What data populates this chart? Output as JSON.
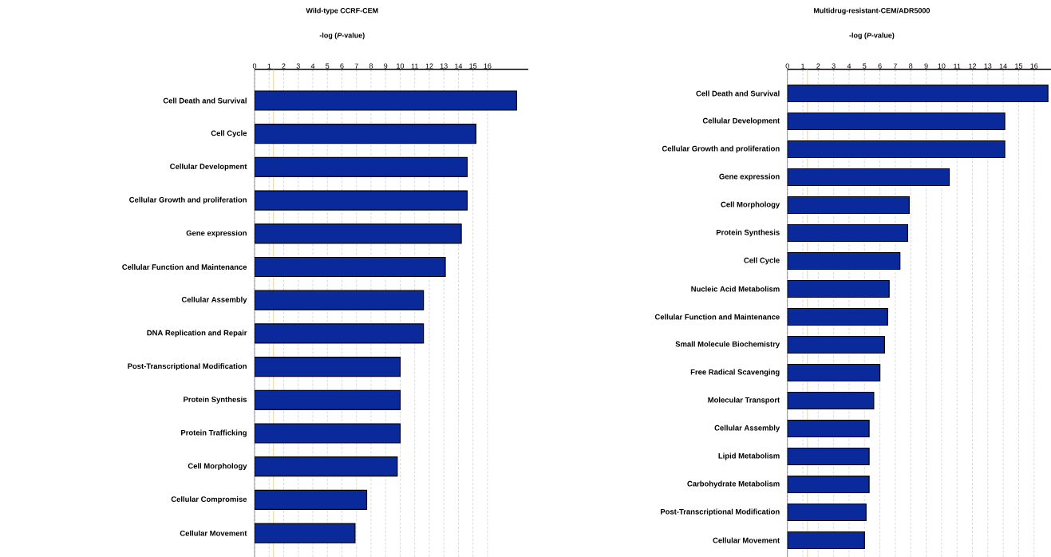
{
  "chart_data": [
    {
      "type": "bar",
      "orientation": "horizontal",
      "title": "Wild-type CCRF-CEM",
      "xlabel": "-log (*P*-value)",
      "categories": [
        "Cell Death and Survival",
        "Cell Cycle",
        "Cellular Development",
        "Cellular Growth and proliferation",
        "Gene expression",
        "Cellular Function and Maintenance",
        "Cellular Assembly",
        "DNA Replication and Repair",
        "Post-Transcriptional Modification",
        "Protein Synthesis",
        "Protein Trafficking",
        "Cell Morphology",
        "Cellular Compromise",
        "Cellular Movement"
      ],
      "values": [
        18.0,
        15.2,
        14.6,
        14.6,
        14.2,
        13.1,
        11.6,
        11.6,
        10.0,
        10.0,
        10.0,
        9.8,
        7.7,
        6.9
      ],
      "color": "#0a2a9c",
      "xlim": [
        0,
        18.8
      ],
      "xticks": [
        0,
        1,
        2,
        3,
        4,
        5,
        6,
        7,
        8,
        9,
        10,
        11,
        12,
        13,
        14,
        15,
        16
      ],
      "grid": "x",
      "ref_lines": [
        {
          "axis": "x",
          "value": 1.3,
          "color": "#f3c77a"
        }
      ]
    },
    {
      "type": "bar",
      "orientation": "horizontal",
      "title": "Multidrug-resistant-CEM/ADR5000",
      "xlabel": "-log (*P*-value)",
      "categories": [
        "Cell Death and Survival",
        "Cellular Development",
        "Cellular Growth and proliferation",
        "Gene expression",
        "Cell Morphology",
        "Protein Synthesis",
        "Cell Cycle",
        "Nucleic Acid Metabolism",
        "Cellular Function and Maintenance",
        "Small Molecule Biochemistry",
        "Free Radical Scavenging",
        "Molecular Transport",
        "Cellular Assembly",
        "Lipid Metabolism",
        "Carbohydrate Metabolism",
        "Post-Transcriptional Modification",
        "Cellular Movement"
      ],
      "values": [
        16.9,
        14.1,
        14.1,
        10.5,
        7.9,
        7.8,
        7.3,
        6.6,
        6.5,
        6.3,
        6.0,
        5.6,
        5.3,
        5.3,
        5.3,
        5.1,
        5.0
      ],
      "color": "#0a2a9c",
      "xlim": [
        0,
        17.1
      ],
      "xticks": [
        0,
        1,
        2,
        3,
        4,
        5,
        6,
        7,
        8,
        9,
        10,
        11,
        12,
        13,
        14,
        15,
        16
      ],
      "grid": "x",
      "ref_lines": [
        {
          "axis": "x",
          "value": 1.3,
          "color": "#f3c77a"
        }
      ]
    }
  ]
}
